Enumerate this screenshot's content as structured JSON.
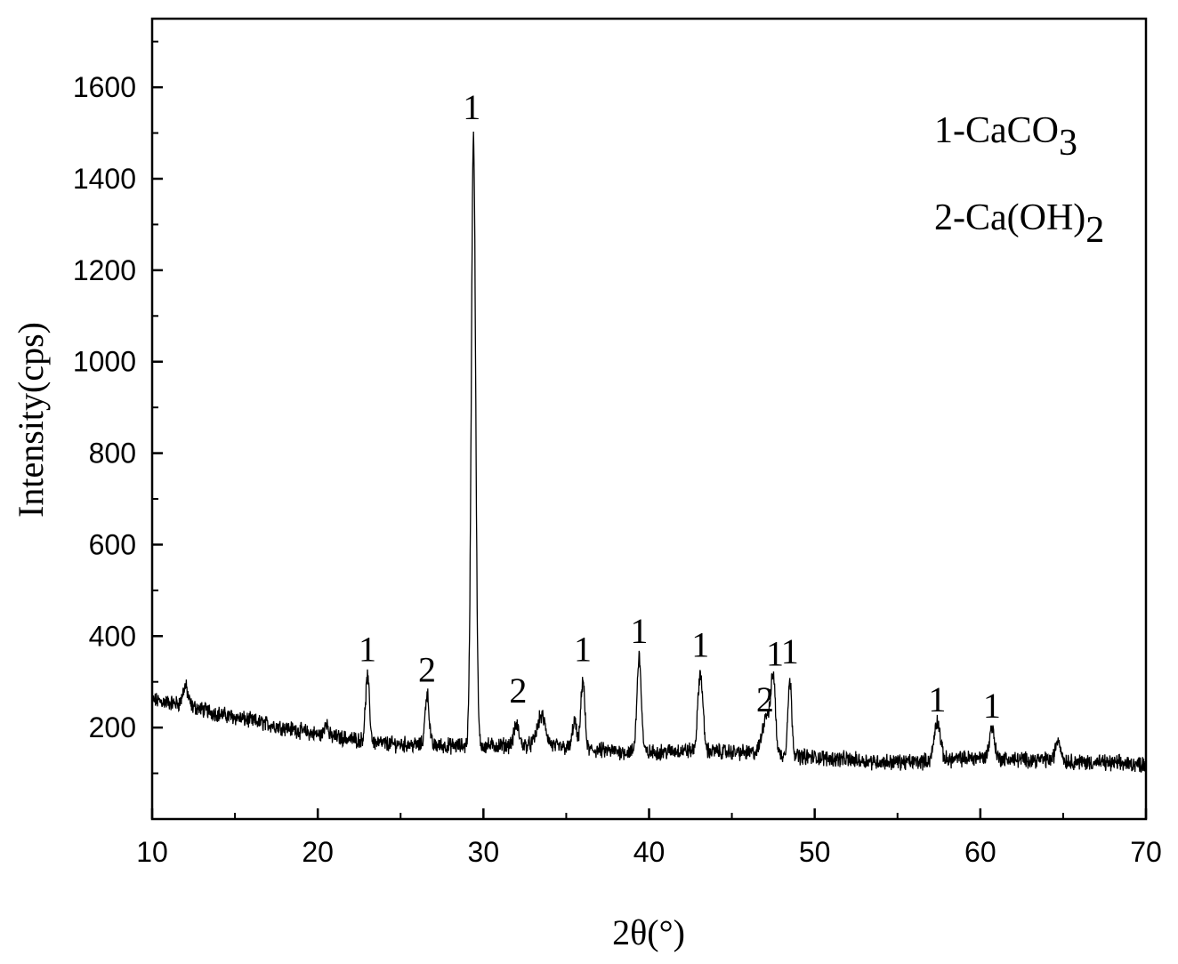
{
  "chart_data": {
    "type": "line",
    "xlabel": "2θ(°)",
    "ylabel": "Intensity(cps)",
    "xlim": [
      10,
      70
    ],
    "ylim": [
      0,
      1750
    ],
    "x_ticks": [
      "10",
      "20",
      "30",
      "40",
      "50",
      "60",
      "70"
    ],
    "y_ticks": [
      "200",
      "400",
      "600",
      "800",
      "1000",
      "1200",
      "1400",
      "1600"
    ],
    "legend": [
      {
        "prefix": "1-CaCO",
        "sub": "3"
      },
      {
        "prefix": "2-Ca(OH)",
        "sub": "2"
      }
    ],
    "baseline": [
      [
        10,
        260
      ],
      [
        12,
        250
      ],
      [
        14,
        230
      ],
      [
        16,
        215
      ],
      [
        18,
        200
      ],
      [
        20,
        185
      ],
      [
        22,
        175
      ],
      [
        24,
        165
      ],
      [
        26,
        162
      ],
      [
        28,
        160
      ],
      [
        30,
        160
      ],
      [
        32,
        162
      ],
      [
        34,
        160
      ],
      [
        36,
        152
      ],
      [
        38,
        148
      ],
      [
        40,
        145
      ],
      [
        42,
        150
      ],
      [
        44,
        148
      ],
      [
        46,
        145
      ],
      [
        48,
        140
      ],
      [
        50,
        135
      ],
      [
        52,
        130
      ],
      [
        54,
        125
      ],
      [
        56,
        125
      ],
      [
        58,
        130
      ],
      [
        60,
        135
      ],
      [
        62,
        130
      ],
      [
        64,
        130
      ],
      [
        66,
        125
      ],
      [
        68,
        122
      ],
      [
        70,
        120
      ]
    ],
    "peaks": [
      {
        "x": 12.0,
        "y": 290,
        "w": 0.15
      },
      {
        "x": 20.5,
        "y": 215,
        "w": 0.1
      },
      {
        "x": 23.0,
        "y": 310,
        "w": 0.12
      },
      {
        "x": 26.6,
        "y": 275,
        "w": 0.12
      },
      {
        "x": 29.4,
        "y": 1495,
        "w": 0.13
      },
      {
        "x": 32.0,
        "y": 205,
        "w": 0.15
      },
      {
        "x": 33.5,
        "y": 225,
        "w": 0.25
      },
      {
        "x": 35.5,
        "y": 215,
        "w": 0.12
      },
      {
        "x": 36.0,
        "y": 305,
        "w": 0.12
      },
      {
        "x": 39.4,
        "y": 355,
        "w": 0.13
      },
      {
        "x": 43.1,
        "y": 320,
        "w": 0.15
      },
      {
        "x": 47.1,
        "y": 230,
        "w": 0.25
      },
      {
        "x": 47.5,
        "y": 295,
        "w": 0.13
      },
      {
        "x": 48.5,
        "y": 300,
        "w": 0.12
      },
      {
        "x": 57.4,
        "y": 215,
        "w": 0.18
      },
      {
        "x": 60.7,
        "y": 200,
        "w": 0.15
      },
      {
        "x": 64.7,
        "y": 175,
        "w": 0.15
      }
    ],
    "noise_amplitude": 14,
    "peak_labels": [
      {
        "text": "1",
        "x": 23.0,
        "y": 345
      },
      {
        "text": "2",
        "x": 26.6,
        "y": 300
      },
      {
        "text": "1",
        "x": 29.3,
        "y": 1530
      },
      {
        "text": "2",
        "x": 32.1,
        "y": 255
      },
      {
        "text": "1",
        "x": 36.0,
        "y": 345
      },
      {
        "text": "1",
        "x": 39.4,
        "y": 385
      },
      {
        "text": "1",
        "x": 43.1,
        "y": 355
      },
      {
        "text": "2",
        "x": 47.0,
        "y": 235
      },
      {
        "text": "1",
        "x": 47.6,
        "y": 335
      },
      {
        "text": "1",
        "x": 48.5,
        "y": 340
      },
      {
        "text": "1",
        "x": 57.4,
        "y": 235
      },
      {
        "text": "1",
        "x": 60.7,
        "y": 222
      }
    ]
  }
}
